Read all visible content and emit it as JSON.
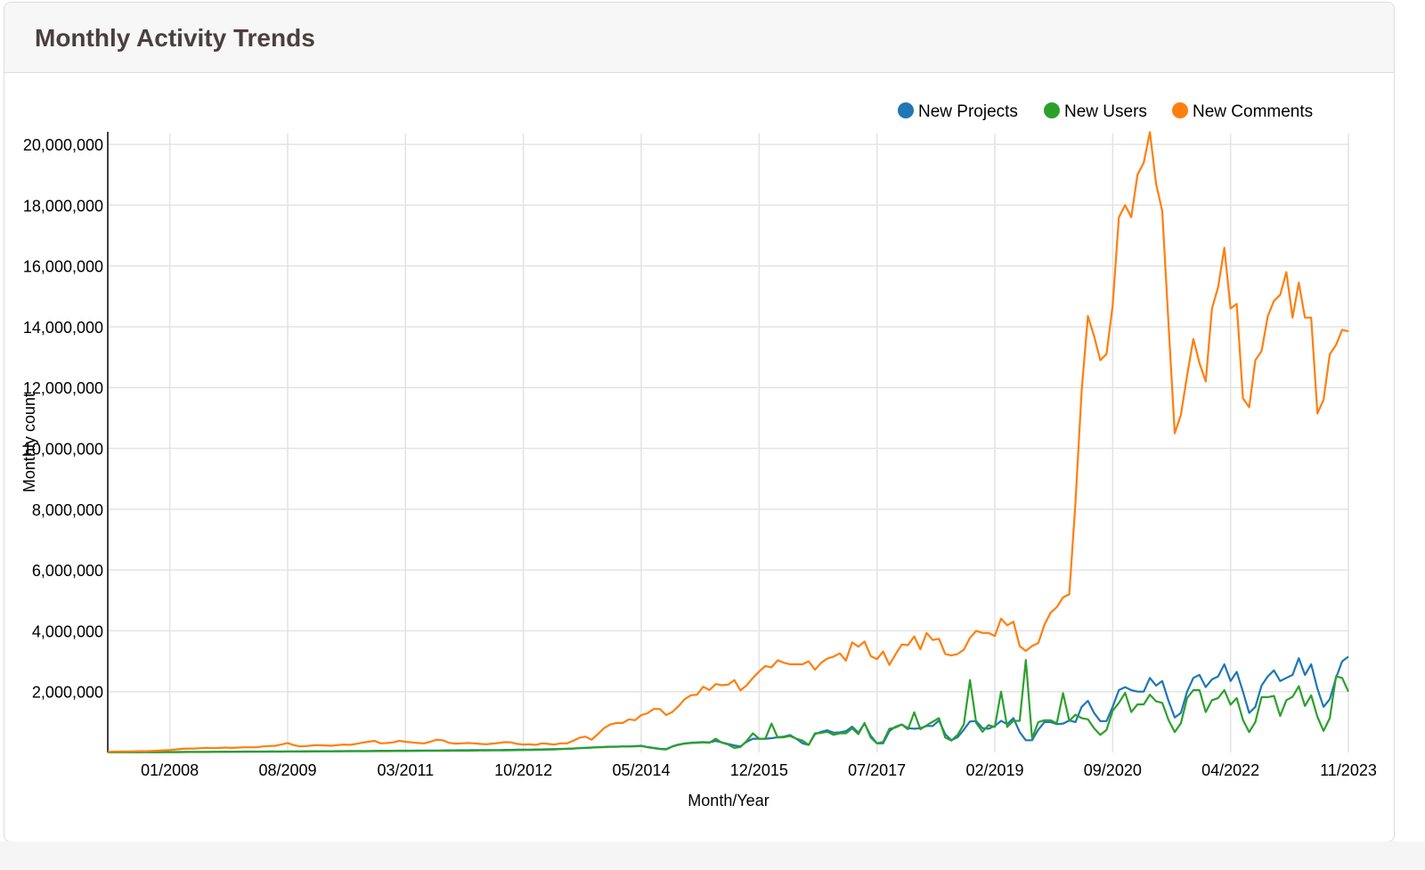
{
  "card": {
    "title": "Monthly Activity Trends"
  },
  "chart_data": {
    "type": "line",
    "title": "",
    "xlabel": "Month/Year",
    "ylabel": "Monthly count",
    "ylim": [
      0,
      20500000
    ],
    "yticks": [
      2000000,
      4000000,
      6000000,
      8000000,
      10000000,
      12000000,
      14000000,
      16000000,
      18000000,
      20000000
    ],
    "ytick_labels": [
      "2,000,000",
      "4,000,000",
      "6,000,000",
      "8,000,000",
      "10,000,000",
      "12,000,000",
      "14,000,000",
      "16,000,000",
      "18,000,000",
      "20,000,000"
    ],
    "xtick_labels": [
      "01/2008",
      "08/2009",
      "03/2011",
      "10/2012",
      "05/2014",
      "12/2015",
      "07/2017",
      "02/2019",
      "09/2020",
      "04/2022",
      "11/2023"
    ],
    "grid": true,
    "legend_position": "top-right",
    "x": [
      "03/2007",
      "04/2007",
      "05/2007",
      "06/2007",
      "07/2007",
      "08/2007",
      "09/2007",
      "10/2007",
      "11/2007",
      "12/2007",
      "01/2008",
      "02/2008",
      "03/2008",
      "04/2008",
      "05/2008",
      "06/2008",
      "07/2008",
      "08/2008",
      "09/2008",
      "10/2008",
      "11/2008",
      "12/2008",
      "01/2009",
      "02/2009",
      "03/2009",
      "04/2009",
      "05/2009",
      "06/2009",
      "07/2009",
      "08/2009",
      "09/2009",
      "10/2009",
      "11/2009",
      "12/2009",
      "01/2010",
      "02/2010",
      "03/2010",
      "04/2010",
      "05/2010",
      "06/2010",
      "07/2010",
      "08/2010",
      "09/2010",
      "10/2010",
      "11/2010",
      "12/2010",
      "01/2011",
      "02/2011",
      "03/2011",
      "04/2011",
      "05/2011",
      "06/2011",
      "07/2011",
      "08/2011",
      "09/2011",
      "10/2011",
      "11/2011",
      "12/2011",
      "01/2012",
      "02/2012",
      "03/2012",
      "04/2012",
      "05/2012",
      "06/2012",
      "07/2012",
      "08/2012",
      "09/2012",
      "10/2012",
      "11/2012",
      "12/2012",
      "01/2013",
      "02/2013",
      "03/2013",
      "04/2013",
      "05/2013",
      "06/2013",
      "07/2013",
      "08/2013",
      "09/2013",
      "10/2013",
      "11/2013",
      "12/2013",
      "01/2014",
      "02/2014",
      "03/2014",
      "04/2014",
      "05/2014",
      "06/2014",
      "07/2014",
      "08/2014",
      "09/2014",
      "10/2014",
      "11/2014",
      "12/2014",
      "01/2015",
      "02/2015",
      "03/2015",
      "04/2015",
      "05/2015",
      "06/2015",
      "07/2015",
      "08/2015",
      "09/2015",
      "10/2015",
      "11/2015",
      "12/2015",
      "01/2016",
      "02/2016",
      "03/2016",
      "04/2016",
      "05/2016",
      "06/2016",
      "07/2016",
      "08/2016",
      "09/2016",
      "10/2016",
      "11/2016",
      "12/2016",
      "01/2017",
      "02/2017",
      "03/2017",
      "04/2017",
      "05/2017",
      "06/2017",
      "07/2017",
      "08/2017",
      "09/2017",
      "10/2017",
      "11/2017",
      "12/2017",
      "01/2018",
      "02/2018",
      "03/2018",
      "04/2018",
      "05/2018",
      "06/2018",
      "07/2018",
      "08/2018",
      "09/2018",
      "10/2018",
      "11/2018",
      "12/2018",
      "01/2019",
      "02/2019",
      "03/2019",
      "04/2019",
      "05/2019",
      "06/2019",
      "07/2019",
      "08/2019",
      "09/2019",
      "10/2019",
      "11/2019",
      "12/2019",
      "01/2020",
      "02/2020",
      "03/2020",
      "04/2020",
      "05/2020",
      "06/2020",
      "07/2020",
      "08/2020",
      "09/2020",
      "10/2020",
      "11/2020",
      "12/2020",
      "01/2021",
      "02/2021",
      "03/2021",
      "04/2021",
      "05/2021",
      "06/2021",
      "07/2021",
      "08/2021",
      "09/2021",
      "10/2021",
      "11/2021",
      "12/2021",
      "01/2022",
      "02/2022",
      "03/2022",
      "04/2022",
      "05/2022",
      "06/2022",
      "07/2022",
      "08/2022",
      "09/2022",
      "10/2022",
      "11/2022",
      "12/2022",
      "01/2023",
      "02/2023",
      "03/2023",
      "04/2023",
      "05/2023",
      "06/2023",
      "07/2023",
      "08/2023",
      "09/2023",
      "10/2023",
      "11/2023"
    ],
    "series": [
      {
        "name": "New Projects",
        "color": "#1f77b4",
        "values": [
          5000,
          5000,
          8000,
          8000,
          10000,
          10000,
          10000,
          12000,
          12000,
          15000,
          15000,
          15000,
          18000,
          18000,
          20000,
          20000,
          20000,
          22000,
          22000,
          25000,
          25000,
          25000,
          28000,
          28000,
          30000,
          30000,
          32000,
          32000,
          35000,
          35000,
          35000,
          38000,
          38000,
          40000,
          40000,
          42000,
          42000,
          45000,
          45000,
          48000,
          48000,
          50000,
          50000,
          52000,
          55000,
          55000,
          55000,
          58000,
          60000,
          60000,
          62000,
          62000,
          65000,
          65000,
          68000,
          70000,
          70000,
          72000,
          72000,
          75000,
          75000,
          78000,
          80000,
          80000,
          85000,
          85000,
          90000,
          90000,
          95000,
          100000,
          100000,
          105000,
          110000,
          115000,
          120000,
          130000,
          140000,
          150000,
          160000,
          170000,
          180000,
          190000,
          190000,
          200000,
          200000,
          210000,
          220000,
          180000,
          150000,
          120000,
          110000,
          200000,
          260000,
          300000,
          320000,
          330000,
          340000,
          330000,
          380000,
          330000,
          280000,
          230000,
          200000,
          350000,
          450000,
          450000,
          450000,
          470000,
          500000,
          520000,
          570000,
          450000,
          300000,
          250000,
          600000,
          680000,
          730000,
          650000,
          660000,
          700000,
          850000,
          650000,
          950000,
          550000,
          300000,
          300000,
          700000,
          850000,
          920000,
          800000,
          780000,
          800000,
          870000,
          870000,
          1050000,
          600000,
          400000,
          500000,
          750000,
          1020000,
          1030000,
          800000,
          780000,
          870000,
          1040000,
          930000,
          1130000,
          670000,
          400000,
          400000,
          750000,
          1000000,
          1000000,
          930000,
          950000,
          1050000,
          1000000,
          1500000,
          1700000,
          1300000,
          1030000,
          1030000,
          1500000,
          2050000,
          2150000,
          2050000,
          2000000,
          2000000,
          2450000,
          2200000,
          2350000,
          1700000,
          1150000,
          1300000,
          2000000,
          2450000,
          2550000,
          2150000,
          2400000,
          2500000,
          2900000,
          2350000,
          2650000,
          2000000,
          1300000,
          1500000,
          2200000,
          2500000,
          2700000,
          2350000,
          2450000,
          2550000,
          3100000,
          2550000,
          2900000,
          2100000,
          1500000,
          1750000,
          2450000,
          3000000,
          3150000
        ]
      },
      {
        "name": "New Users",
        "color": "#2ca02c",
        "values": [
          3000,
          3000,
          5000,
          5000,
          6000,
          7000,
          8000,
          9000,
          10000,
          10000,
          12000,
          12000,
          13000,
          14000,
          15000,
          15000,
          16000,
          17000,
          18000,
          18000,
          20000,
          20000,
          21000,
          22000,
          22000,
          24000,
          25000,
          26000,
          27000,
          28000,
          28000,
          30000,
          30000,
          32000,
          33000,
          34000,
          35000,
          36000,
          37000,
          38000,
          40000,
          40000,
          42000,
          43000,
          44000,
          45000,
          46000,
          47000,
          48000,
          50000,
          50000,
          52000,
          53000,
          54000,
          55000,
          56000,
          58000,
          60000,
          60000,
          62000,
          63000,
          65000,
          67000,
          68000,
          70000,
          72000,
          75000,
          78000,
          80000,
          85000,
          90000,
          95000,
          100000,
          110000,
          120000,
          130000,
          140000,
          150000,
          160000,
          170000,
          175000,
          185000,
          185000,
          195000,
          195000,
          200000,
          210000,
          170000,
          140000,
          110000,
          100000,
          190000,
          250000,
          290000,
          310000,
          320000,
          330000,
          320000,
          450000,
          320000,
          260000,
          150000,
          180000,
          380000,
          630000,
          450000,
          450000,
          950000,
          490000,
          500000,
          540000,
          450000,
          390000,
          250000,
          630000,
          640000,
          680000,
          580000,
          630000,
          630000,
          790000,
          600000,
          970000,
          490000,
          300000,
          350000,
          780000,
          820000,
          920000,
          760000,
          1320000,
          760000,
          890000,
          1010000,
          1130000,
          490000,
          390000,
          580000,
          920000,
          2380000,
          970000,
          680000,
          900000,
          840000,
          2000000,
          840000,
          1040000,
          1040000,
          3040000,
          470000,
          1000000,
          1060000,
          1060000,
          960000,
          1950000,
          1040000,
          1240000,
          1130000,
          1090000,
          800000,
          580000,
          740000,
          1370000,
          1630000,
          1960000,
          1330000,
          1580000,
          1580000,
          1900000,
          1680000,
          1630000,
          1070000,
          670000,
          960000,
          1790000,
          2050000,
          2050000,
          1330000,
          1720000,
          1790000,
          2050000,
          1570000,
          1790000,
          1070000,
          670000,
          1000000,
          1820000,
          1820000,
          1860000,
          1200000,
          1720000,
          1830000,
          2180000,
          1530000,
          1880000,
          1170000,
          710000,
          1130000,
          2500000,
          2450000,
          2000000
        ]
      },
      {
        "name": "New Comments",
        "color": "#ff7f0e",
        "values": [
          20000,
          25000,
          30000,
          30000,
          35000,
          40000,
          40000,
          50000,
          60000,
          70000,
          80000,
          100000,
          120000,
          130000,
          130000,
          140000,
          150000,
          140000,
          150000,
          160000,
          150000,
          160000,
          170000,
          170000,
          170000,
          200000,
          210000,
          220000,
          260000,
          310000,
          240000,
          200000,
          210000,
          230000,
          240000,
          230000,
          220000,
          240000,
          260000,
          250000,
          280000,
          320000,
          350000,
          380000,
          300000,
          310000,
          330000,
          380000,
          350000,
          330000,
          310000,
          300000,
          350000,
          420000,
          400000,
          320000,
          290000,
          300000,
          310000,
          300000,
          280000,
          270000,
          290000,
          310000,
          340000,
          330000,
          280000,
          260000,
          270000,
          250000,
          300000,
          280000,
          260000,
          300000,
          300000,
          380000,
          480000,
          520000,
          420000,
          600000,
          800000,
          920000,
          970000,
          970000,
          1090000,
          1060000,
          1230000,
          1290000,
          1430000,
          1430000,
          1230000,
          1330000,
          1520000,
          1750000,
          1880000,
          1900000,
          2160000,
          2050000,
          2250000,
          2210000,
          2230000,
          2380000,
          2040000,
          2210000,
          2450000,
          2660000,
          2840000,
          2800000,
          3030000,
          2950000,
          2900000,
          2900000,
          2900000,
          3000000,
          2720000,
          2950000,
          3090000,
          3150000,
          3260000,
          3020000,
          3620000,
          3480000,
          3650000,
          3170000,
          3070000,
          3320000,
          2880000,
          3230000,
          3550000,
          3530000,
          3820000,
          3390000,
          3930000,
          3700000,
          3740000,
          3240000,
          3190000,
          3240000,
          3380000,
          3770000,
          4000000,
          3930000,
          3930000,
          3830000,
          4400000,
          4180000,
          4300000,
          3500000,
          3340000,
          3500000,
          3600000,
          4200000,
          4600000,
          4780000,
          5100000,
          5200000,
          8200000,
          11900000,
          14350000,
          13700000,
          12900000,
          13100000,
          14700000,
          17600000,
          18000000,
          17600000,
          19000000,
          19400000,
          20400000,
          18700000,
          17800000,
          14100000,
          10500000,
          11100000,
          12400000,
          13600000,
          12800000,
          12200000,
          14600000,
          15300000,
          16600000,
          14600000,
          14750000,
          11650000,
          11350000,
          12900000,
          13200000,
          14350000,
          14850000,
          15050000,
          15800000,
          14300000,
          15450000,
          14300000,
          14300000,
          11150000,
          11600000,
          13100000,
          13400000,
          13900000,
          13850000
        ]
      }
    ]
  }
}
